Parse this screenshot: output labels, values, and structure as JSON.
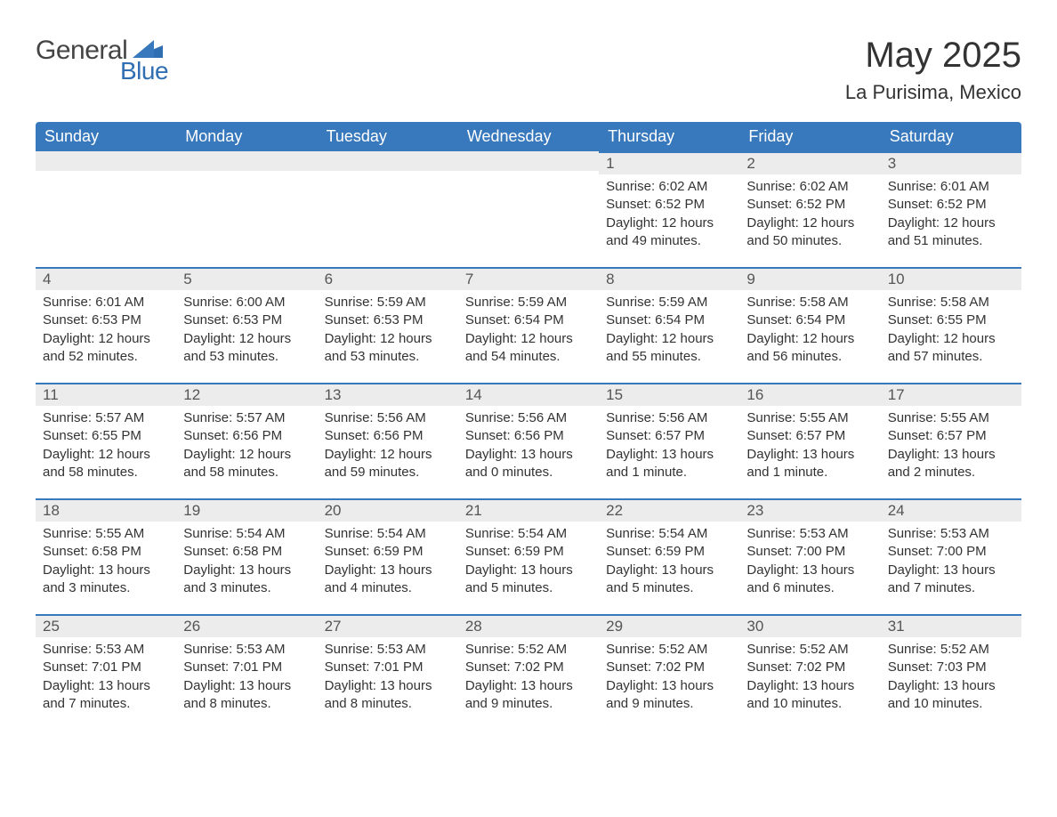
{
  "brand": {
    "general": "General",
    "blue": "Blue"
  },
  "title": "May 2025",
  "location": "La Purisima, Mexico",
  "colors": {
    "header_bg": "#3878bc",
    "header_text": "#ffffff",
    "daynum_bg": "#ececec",
    "daynum_border": "#3878bc",
    "body_text": "#333333",
    "background": "#ffffff",
    "logo_blue": "#2f6fb2",
    "logo_gray": "#444444"
  },
  "typography": {
    "title_fontsize": 40,
    "subtitle_fontsize": 22,
    "header_fontsize": 18,
    "daynum_fontsize": 17,
    "body_fontsize": 15,
    "font_family": "Arial"
  },
  "calendar": {
    "columns": [
      "Sunday",
      "Monday",
      "Tuesday",
      "Wednesday",
      "Thursday",
      "Friday",
      "Saturday"
    ],
    "first_weekday_index": 4,
    "days": [
      {
        "n": 1,
        "sunrise": "6:02 AM",
        "sunset": "6:52 PM",
        "daylight": "12 hours and 49 minutes."
      },
      {
        "n": 2,
        "sunrise": "6:02 AM",
        "sunset": "6:52 PM",
        "daylight": "12 hours and 50 minutes."
      },
      {
        "n": 3,
        "sunrise": "6:01 AM",
        "sunset": "6:52 PM",
        "daylight": "12 hours and 51 minutes."
      },
      {
        "n": 4,
        "sunrise": "6:01 AM",
        "sunset": "6:53 PM",
        "daylight": "12 hours and 52 minutes."
      },
      {
        "n": 5,
        "sunrise": "6:00 AM",
        "sunset": "6:53 PM",
        "daylight": "12 hours and 53 minutes."
      },
      {
        "n": 6,
        "sunrise": "5:59 AM",
        "sunset": "6:53 PM",
        "daylight": "12 hours and 53 minutes."
      },
      {
        "n": 7,
        "sunrise": "5:59 AM",
        "sunset": "6:54 PM",
        "daylight": "12 hours and 54 minutes."
      },
      {
        "n": 8,
        "sunrise": "5:59 AM",
        "sunset": "6:54 PM",
        "daylight": "12 hours and 55 minutes."
      },
      {
        "n": 9,
        "sunrise": "5:58 AM",
        "sunset": "6:54 PM",
        "daylight": "12 hours and 56 minutes."
      },
      {
        "n": 10,
        "sunrise": "5:58 AM",
        "sunset": "6:55 PM",
        "daylight": "12 hours and 57 minutes."
      },
      {
        "n": 11,
        "sunrise": "5:57 AM",
        "sunset": "6:55 PM",
        "daylight": "12 hours and 58 minutes."
      },
      {
        "n": 12,
        "sunrise": "5:57 AM",
        "sunset": "6:56 PM",
        "daylight": "12 hours and 58 minutes."
      },
      {
        "n": 13,
        "sunrise": "5:56 AM",
        "sunset": "6:56 PM",
        "daylight": "12 hours and 59 minutes."
      },
      {
        "n": 14,
        "sunrise": "5:56 AM",
        "sunset": "6:56 PM",
        "daylight": "13 hours and 0 minutes."
      },
      {
        "n": 15,
        "sunrise": "5:56 AM",
        "sunset": "6:57 PM",
        "daylight": "13 hours and 1 minute."
      },
      {
        "n": 16,
        "sunrise": "5:55 AM",
        "sunset": "6:57 PM",
        "daylight": "13 hours and 1 minute."
      },
      {
        "n": 17,
        "sunrise": "5:55 AM",
        "sunset": "6:57 PM",
        "daylight": "13 hours and 2 minutes."
      },
      {
        "n": 18,
        "sunrise": "5:55 AM",
        "sunset": "6:58 PM",
        "daylight": "13 hours and 3 minutes."
      },
      {
        "n": 19,
        "sunrise": "5:54 AM",
        "sunset": "6:58 PM",
        "daylight": "13 hours and 3 minutes."
      },
      {
        "n": 20,
        "sunrise": "5:54 AM",
        "sunset": "6:59 PM",
        "daylight": "13 hours and 4 minutes."
      },
      {
        "n": 21,
        "sunrise": "5:54 AM",
        "sunset": "6:59 PM",
        "daylight": "13 hours and 5 minutes."
      },
      {
        "n": 22,
        "sunrise": "5:54 AM",
        "sunset": "6:59 PM",
        "daylight": "13 hours and 5 minutes."
      },
      {
        "n": 23,
        "sunrise": "5:53 AM",
        "sunset": "7:00 PM",
        "daylight": "13 hours and 6 minutes."
      },
      {
        "n": 24,
        "sunrise": "5:53 AM",
        "sunset": "7:00 PM",
        "daylight": "13 hours and 7 minutes."
      },
      {
        "n": 25,
        "sunrise": "5:53 AM",
        "sunset": "7:01 PM",
        "daylight": "13 hours and 7 minutes."
      },
      {
        "n": 26,
        "sunrise": "5:53 AM",
        "sunset": "7:01 PM",
        "daylight": "13 hours and 8 minutes."
      },
      {
        "n": 27,
        "sunrise": "5:53 AM",
        "sunset": "7:01 PM",
        "daylight": "13 hours and 8 minutes."
      },
      {
        "n": 28,
        "sunrise": "5:52 AM",
        "sunset": "7:02 PM",
        "daylight": "13 hours and 9 minutes."
      },
      {
        "n": 29,
        "sunrise": "5:52 AM",
        "sunset": "7:02 PM",
        "daylight": "13 hours and 9 minutes."
      },
      {
        "n": 30,
        "sunrise": "5:52 AM",
        "sunset": "7:02 PM",
        "daylight": "13 hours and 10 minutes."
      },
      {
        "n": 31,
        "sunrise": "5:52 AM",
        "sunset": "7:03 PM",
        "daylight": "13 hours and 10 minutes."
      }
    ],
    "labels": {
      "sunrise": "Sunrise",
      "sunset": "Sunset",
      "daylight": "Daylight"
    }
  }
}
